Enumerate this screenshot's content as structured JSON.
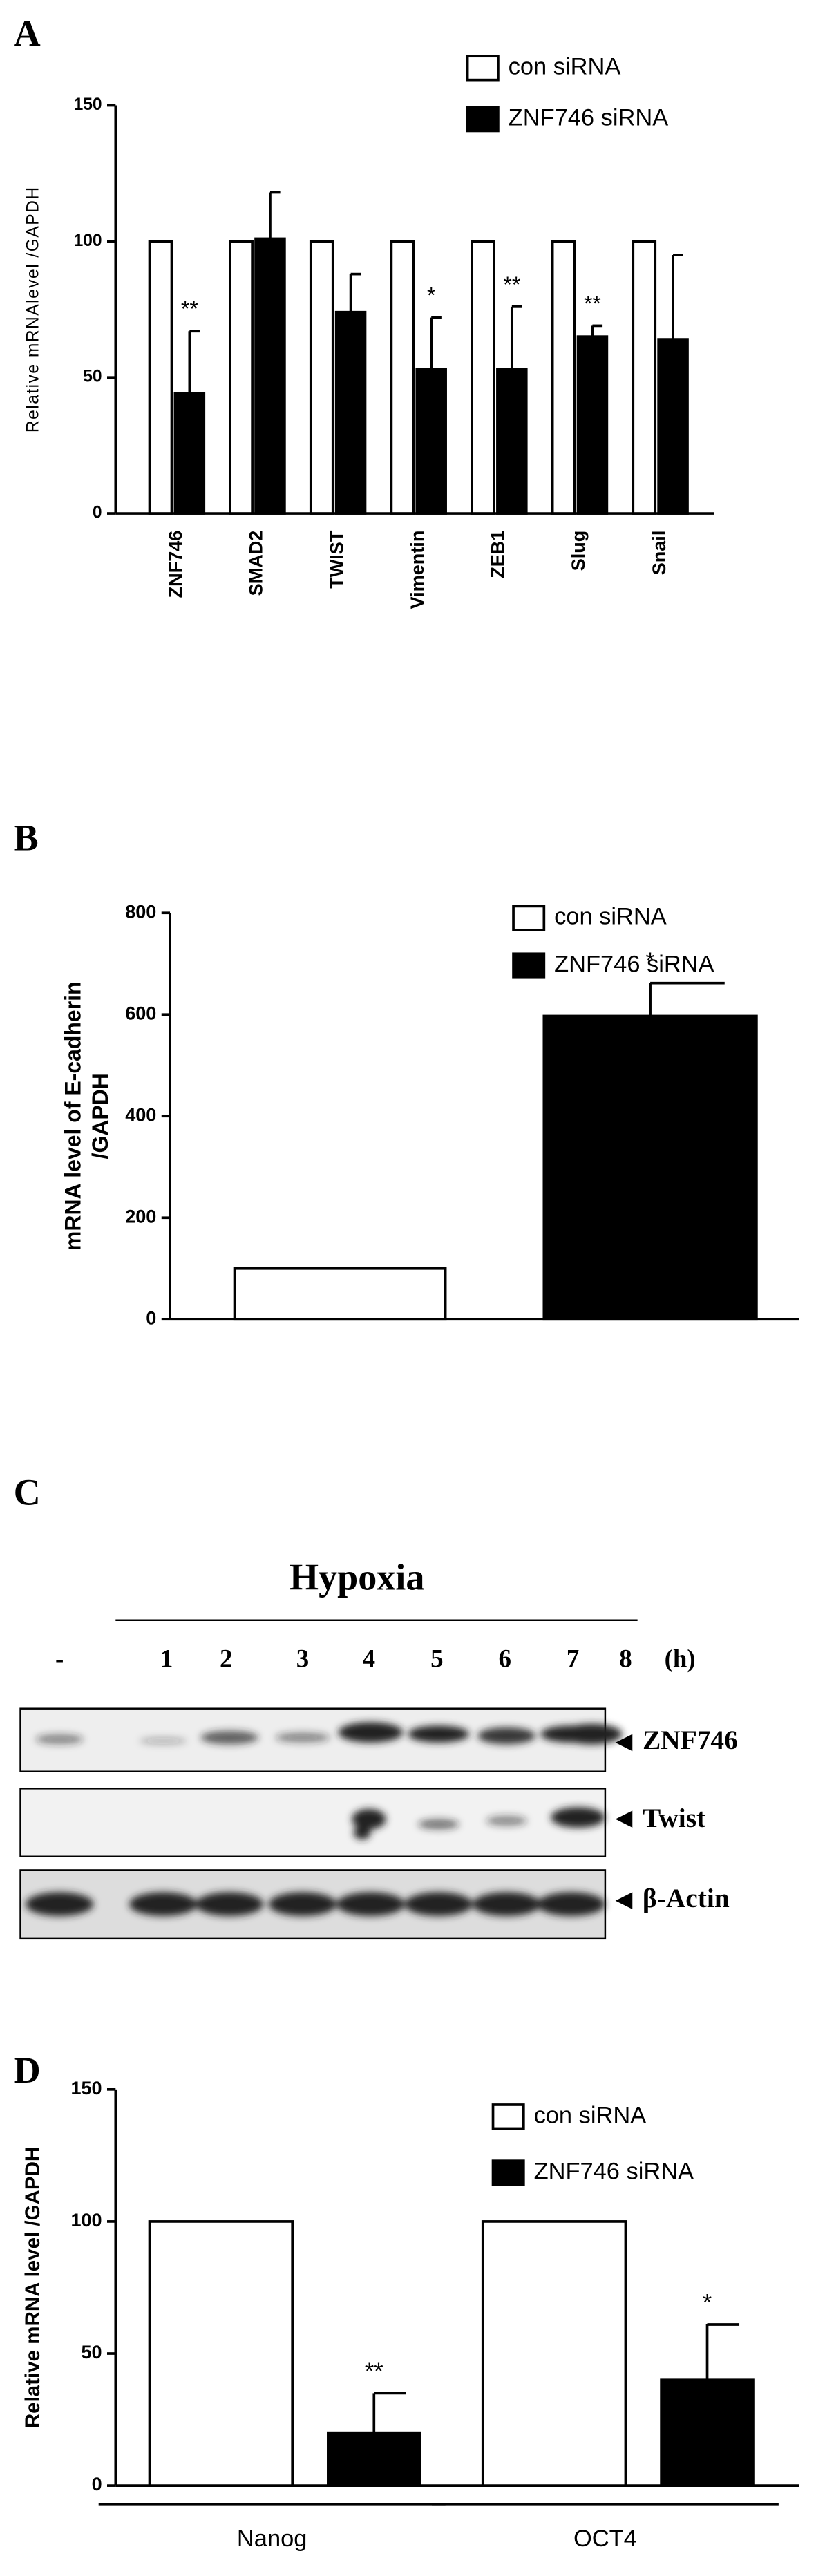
{
  "chart_data": [
    {
      "type": "bar",
      "panel_label": "A",
      "ylabel": "Relative mRNAlevel /GAPDH",
      "categories": [
        "ZNF746",
        "SMAD2",
        "TWIST",
        "Vimentin",
        "ZEB1",
        "Slug",
        "Snail"
      ],
      "series": [
        {
          "name": "con siRNA",
          "color": "#ffffff",
          "values": [
            100,
            100,
            100,
            100,
            100,
            100,
            100
          ]
        },
        {
          "name": "ZNF746 siRNA",
          "color": "#000000",
          "values": [
            44,
            101,
            74,
            53,
            53,
            65,
            64
          ],
          "errors": [
            23,
            17,
            14,
            19,
            23,
            4,
            31
          ]
        }
      ],
      "annotations": [
        "**",
        null,
        null,
        "*",
        "**",
        "**",
        null
      ],
      "ylim": [
        0,
        150
      ],
      "yticks": [
        0,
        50,
        100,
        150
      ]
    },
    {
      "type": "bar",
      "panel_label": "B",
      "ylabel": [
        "mRNA level of E-cadherin",
        "/GAPDH"
      ],
      "categories": [
        null
      ],
      "series": [
        {
          "name": "con siRNA",
          "color": "#ffffff",
          "values": [
            100
          ]
        },
        {
          "name": "ZNF746 siRNA",
          "color": "#000000",
          "values": [
            597
          ],
          "errors": [
            65
          ]
        }
      ],
      "annotations": [
        "*"
      ],
      "ylim": [
        0,
        800
      ],
      "yticks": [
        0,
        200,
        400,
        600,
        800
      ]
    },
    {
      "type": "bar",
      "panel_label": "D",
      "ylabel": "Relative mRNA level /GAPDH",
      "categories": [
        "Nanog",
        "OCT4"
      ],
      "series": [
        {
          "name": "con siRNA",
          "color": "#ffffff",
          "values": [
            100,
            100
          ]
        },
        {
          "name": "ZNF746 siRNA",
          "color": "#000000",
          "values": [
            20,
            40
          ],
          "errors": [
            15,
            21
          ]
        }
      ],
      "annotations": [
        "**",
        "*"
      ],
      "ylim": [
        0,
        150
      ],
      "yticks": [
        0,
        50,
        100,
        150
      ]
    }
  ],
  "blot": {
    "panel_label": "C",
    "condition": "Hypoxia",
    "lanes": [
      "-",
      "1",
      "2",
      "3",
      "4",
      "5",
      "6",
      "7",
      "8"
    ],
    "unit": "(h)",
    "rows": [
      "ZNF746",
      "Twist",
      "β-Actin"
    ]
  }
}
